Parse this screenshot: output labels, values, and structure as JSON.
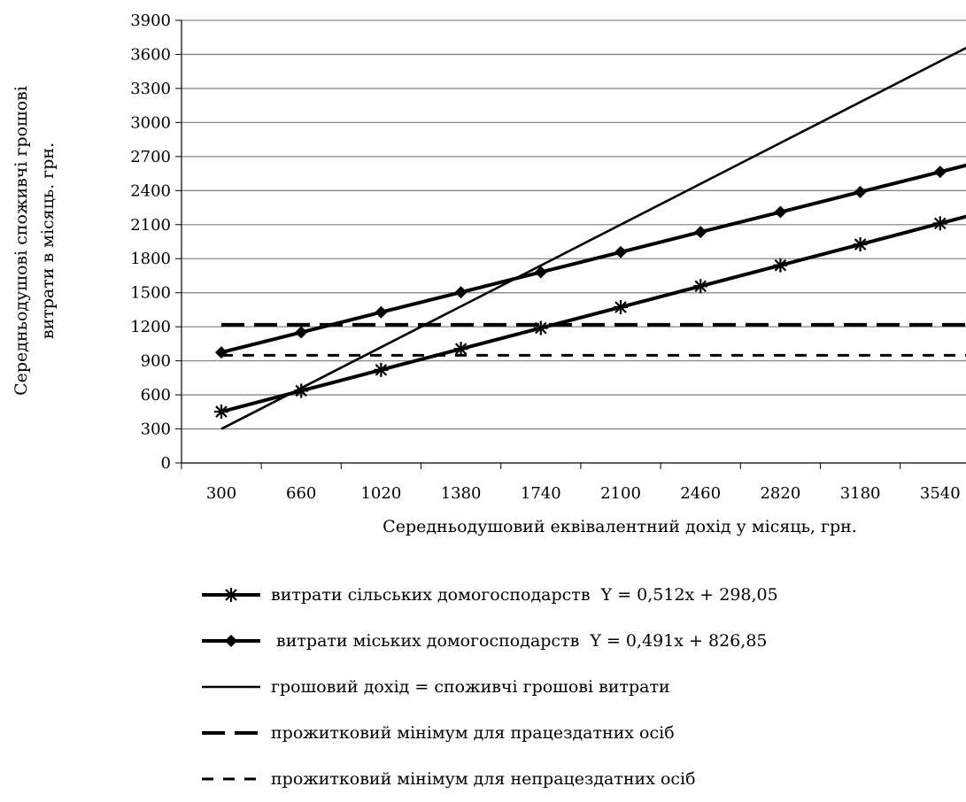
{
  "chart_data": {
    "type": "line",
    "xlabel": "Середньодушовий еквівалентний дохід у місяць, грн.",
    "ylabel": "Середньодушові споживчі грошові витрати в місяць. грн.",
    "x_ticks": [
      "300",
      "660",
      "1020",
      "1380",
      "1740",
      "2100",
      "2460",
      "2820",
      "3180",
      "3540"
    ],
    "y_ticks": [
      "0",
      "300",
      "600",
      "900",
      "1200",
      "1500",
      "1800",
      "2100",
      "2400",
      "2700",
      "3000",
      "3300",
      "3600",
      "3900"
    ],
    "ylim": [
      0,
      3900
    ],
    "grid": "horizontal",
    "legend_position": "bottom",
    "series": [
      {
        "name": "витрати сільських домогосподарств  Y = 0,512x + 298,05",
        "marker": "asterisk",
        "x": [
          300,
          660,
          1020,
          1380,
          1740,
          2100,
          2460,
          2820,
          3180,
          3540
        ],
        "y": [
          452,
          636,
          820,
          1005,
          1189,
          1373,
          1558,
          1742,
          1926,
          2111
        ]
      },
      {
        "name": " витрати міських домогосподарств  Y = 0,491x + 826,85",
        "marker": "diamond",
        "x": [
          300,
          660,
          1020,
          1380,
          1740,
          2100,
          2460,
          2820,
          3180,
          3540
        ],
        "y": [
          974,
          1151,
          1328,
          1504,
          1681,
          1858,
          2035,
          2211,
          2388,
          2565
        ]
      },
      {
        "name": "грошовий дохід = споживчі грошові витрати",
        "style": "solid-thin",
        "x": [
          300,
          3540
        ],
        "y": [
          300,
          3540
        ]
      },
      {
        "name": "прожитковий мінімум для працездатних осіб",
        "style": "long-dash",
        "x": [
          300,
          3540
        ],
        "y": [
          1218,
          1218
        ]
      },
      {
        "name": "прожитковий мінімум для непрацездатних осіб",
        "style": "short-dash",
        "x": [
          300,
          3540
        ],
        "y": [
          949,
          949
        ]
      }
    ],
    "colors": {
      "line": "#000000",
      "grid": "#888888"
    }
  }
}
